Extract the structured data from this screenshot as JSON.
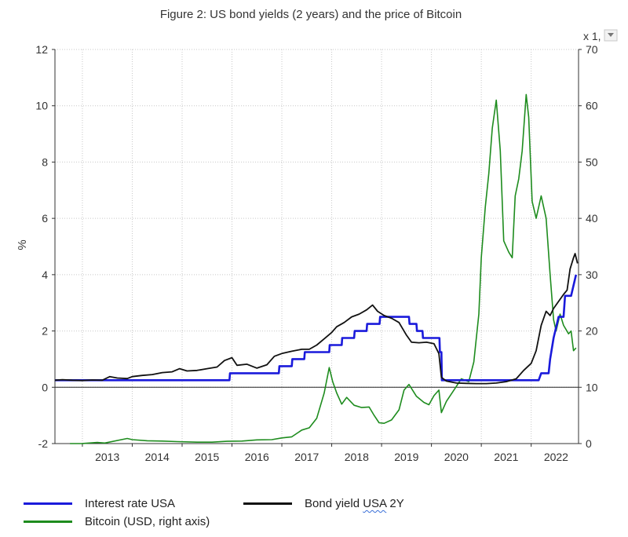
{
  "chart_data": {
    "type": "line",
    "title": "Figure 2: US bond yields (2 years) and the price of Bitcoin",
    "ylabel_left": "%",
    "right_axis_multiplier": "x 1,",
    "x_ticks": [
      "2013",
      "2014",
      "2015",
      "2016",
      "2017",
      "2018",
      "2019",
      "2020",
      "2021",
      "2022"
    ],
    "xlim": [
      2012.45,
      2022.95
    ],
    "ylim_left": [
      -2,
      12
    ],
    "ylim_right": [
      0,
      70
    ],
    "left_ticks": [
      "-2",
      "0",
      "2",
      "4",
      "6",
      "8",
      "10",
      "12"
    ],
    "right_ticks": [
      "0",
      "10",
      "20",
      "30",
      "40",
      "50",
      "60",
      "70"
    ],
    "grid": true,
    "legend_position": "bottom",
    "series": [
      {
        "name": "Interest rate USA",
        "color": "#1a1adb",
        "axis": "left",
        "points": [
          [
            2012.45,
            0.25
          ],
          [
            2015.95,
            0.25
          ],
          [
            2015.96,
            0.5
          ],
          [
            2016.94,
            0.5
          ],
          [
            2016.95,
            0.75
          ],
          [
            2017.2,
            0.75
          ],
          [
            2017.21,
            1.0
          ],
          [
            2017.45,
            1.0
          ],
          [
            2017.46,
            1.25
          ],
          [
            2017.95,
            1.25
          ],
          [
            2017.96,
            1.5
          ],
          [
            2018.2,
            1.5
          ],
          [
            2018.21,
            1.75
          ],
          [
            2018.45,
            1.75
          ],
          [
            2018.46,
            2.0
          ],
          [
            2018.7,
            2.0
          ],
          [
            2018.71,
            2.25
          ],
          [
            2018.96,
            2.25
          ],
          [
            2018.97,
            2.5
          ],
          [
            2019.55,
            2.5
          ],
          [
            2019.56,
            2.25
          ],
          [
            2019.7,
            2.25
          ],
          [
            2019.71,
            2.0
          ],
          [
            2019.82,
            2.0
          ],
          [
            2019.83,
            1.75
          ],
          [
            2020.16,
            1.75
          ],
          [
            2020.17,
            1.25
          ],
          [
            2020.2,
            1.25
          ],
          [
            2020.21,
            0.25
          ],
          [
            2022.15,
            0.25
          ],
          [
            2022.2,
            0.5
          ],
          [
            2022.35,
            0.5
          ],
          [
            2022.38,
            1.0
          ],
          [
            2022.45,
            1.75
          ],
          [
            2022.55,
            2.5
          ],
          [
            2022.65,
            2.5
          ],
          [
            2022.68,
            3.25
          ],
          [
            2022.8,
            3.25
          ],
          [
            2022.9,
            4.0
          ]
        ]
      },
      {
        "name": "Bond yield USA 2Y",
        "color": "#111111",
        "axis": "left",
        "points": [
          [
            2012.45,
            0.25
          ],
          [
            2012.6,
            0.27
          ],
          [
            2012.8,
            0.25
          ],
          [
            2013.0,
            0.24
          ],
          [
            2013.2,
            0.26
          ],
          [
            2013.4,
            0.25
          ],
          [
            2013.55,
            0.38
          ],
          [
            2013.7,
            0.33
          ],
          [
            2013.9,
            0.31
          ],
          [
            2014.0,
            0.38
          ],
          [
            2014.2,
            0.42
          ],
          [
            2014.4,
            0.45
          ],
          [
            2014.6,
            0.52
          ],
          [
            2014.8,
            0.55
          ],
          [
            2014.95,
            0.66
          ],
          [
            2015.1,
            0.58
          ],
          [
            2015.3,
            0.6
          ],
          [
            2015.5,
            0.66
          ],
          [
            2015.7,
            0.72
          ],
          [
            2015.85,
            0.95
          ],
          [
            2016.0,
            1.05
          ],
          [
            2016.1,
            0.78
          ],
          [
            2016.3,
            0.82
          ],
          [
            2016.5,
            0.68
          ],
          [
            2016.7,
            0.8
          ],
          [
            2016.85,
            1.1
          ],
          [
            2017.0,
            1.2
          ],
          [
            2017.2,
            1.28
          ],
          [
            2017.4,
            1.35
          ],
          [
            2017.55,
            1.35
          ],
          [
            2017.7,
            1.5
          ],
          [
            2017.85,
            1.72
          ],
          [
            2018.0,
            1.95
          ],
          [
            2018.1,
            2.15
          ],
          [
            2018.25,
            2.3
          ],
          [
            2018.4,
            2.5
          ],
          [
            2018.55,
            2.6
          ],
          [
            2018.7,
            2.75
          ],
          [
            2018.82,
            2.92
          ],
          [
            2018.92,
            2.7
          ],
          [
            2019.05,
            2.55
          ],
          [
            2019.2,
            2.45
          ],
          [
            2019.35,
            2.3
          ],
          [
            2019.5,
            1.85
          ],
          [
            2019.6,
            1.6
          ],
          [
            2019.75,
            1.58
          ],
          [
            2019.9,
            1.6
          ],
          [
            2020.05,
            1.55
          ],
          [
            2020.15,
            1.2
          ],
          [
            2020.2,
            0.35
          ],
          [
            2020.3,
            0.22
          ],
          [
            2020.5,
            0.15
          ],
          [
            2020.7,
            0.14
          ],
          [
            2020.9,
            0.13
          ],
          [
            2021.1,
            0.13
          ],
          [
            2021.3,
            0.15
          ],
          [
            2021.5,
            0.2
          ],
          [
            2021.7,
            0.3
          ],
          [
            2021.85,
            0.6
          ],
          [
            2022.0,
            0.85
          ],
          [
            2022.1,
            1.3
          ],
          [
            2022.2,
            2.2
          ],
          [
            2022.3,
            2.7
          ],
          [
            2022.38,
            2.55
          ],
          [
            2022.45,
            2.8
          ],
          [
            2022.55,
            3.05
          ],
          [
            2022.65,
            3.3
          ],
          [
            2022.72,
            3.45
          ],
          [
            2022.78,
            4.2
          ],
          [
            2022.85,
            4.6
          ],
          [
            2022.88,
            4.75
          ],
          [
            2022.93,
            4.4
          ]
        ]
      },
      {
        "name": "Bitcoin (USD, right axis)",
        "color": "#1e8c1e",
        "axis": "right",
        "points": [
          [
            2012.75,
            0.0
          ],
          [
            2013.0,
            0.02
          ],
          [
            2013.3,
            0.2
          ],
          [
            2013.45,
            0.1
          ],
          [
            2013.9,
            0.9
          ],
          [
            2014.0,
            0.7
          ],
          [
            2014.3,
            0.5
          ],
          [
            2014.6,
            0.45
          ],
          [
            2014.9,
            0.35
          ],
          [
            2015.3,
            0.25
          ],
          [
            2015.6,
            0.25
          ],
          [
            2015.9,
            0.4
          ],
          [
            2016.2,
            0.45
          ],
          [
            2016.5,
            0.65
          ],
          [
            2016.8,
            0.7
          ],
          [
            2017.0,
            1.0
          ],
          [
            2017.2,
            1.2
          ],
          [
            2017.4,
            2.4
          ],
          [
            2017.55,
            2.8
          ],
          [
            2017.7,
            4.5
          ],
          [
            2017.85,
            9.0
          ],
          [
            2017.95,
            13.5
          ],
          [
            2018.02,
            11.0
          ],
          [
            2018.1,
            9.0
          ],
          [
            2018.2,
            7.0
          ],
          [
            2018.3,
            8.2
          ],
          [
            2018.45,
            6.8
          ],
          [
            2018.6,
            6.4
          ],
          [
            2018.75,
            6.5
          ],
          [
            2018.85,
            5.0
          ],
          [
            2018.95,
            3.7
          ],
          [
            2019.05,
            3.6
          ],
          [
            2019.2,
            4.2
          ],
          [
            2019.35,
            6.0
          ],
          [
            2019.45,
            9.5
          ],
          [
            2019.55,
            10.5
          ],
          [
            2019.7,
            8.4
          ],
          [
            2019.85,
            7.3
          ],
          [
            2019.95,
            6.9
          ],
          [
            2020.05,
            8.5
          ],
          [
            2020.15,
            9.5
          ],
          [
            2020.2,
            5.5
          ],
          [
            2020.3,
            7.5
          ],
          [
            2020.45,
            9.5
          ],
          [
            2020.6,
            11.5
          ],
          [
            2020.75,
            11.0
          ],
          [
            2020.85,
            14.5
          ],
          [
            2020.95,
            23.0
          ],
          [
            2021.0,
            33.0
          ],
          [
            2021.08,
            42.0
          ],
          [
            2021.15,
            48.0
          ],
          [
            2021.22,
            56.0
          ],
          [
            2021.3,
            61.0
          ],
          [
            2021.38,
            52.0
          ],
          [
            2021.45,
            36.0
          ],
          [
            2021.55,
            34.0
          ],
          [
            2021.62,
            33.0
          ],
          [
            2021.68,
            44.0
          ],
          [
            2021.75,
            47.0
          ],
          [
            2021.82,
            52.0
          ],
          [
            2021.9,
            62.0
          ],
          [
            2021.95,
            58.0
          ],
          [
            2022.02,
            43.0
          ],
          [
            2022.1,
            40.0
          ],
          [
            2022.2,
            44.0
          ],
          [
            2022.3,
            40.0
          ],
          [
            2022.38,
            30.0
          ],
          [
            2022.45,
            22.0
          ],
          [
            2022.5,
            20.0
          ],
          [
            2022.58,
            23.0
          ],
          [
            2022.65,
            21.0
          ],
          [
            2022.75,
            19.5
          ],
          [
            2022.8,
            20.0
          ],
          [
            2022.85,
            16.5
          ],
          [
            2022.9,
            17.0
          ]
        ]
      }
    ]
  },
  "legend": {
    "interest_label": "Interest rate USA",
    "bond_label_pre": "Bond yield ",
    "bond_label_usa": "USA",
    "bond_label_post": " 2Y",
    "bitcoin_label": "Bitcoin (USD, right axis)"
  }
}
